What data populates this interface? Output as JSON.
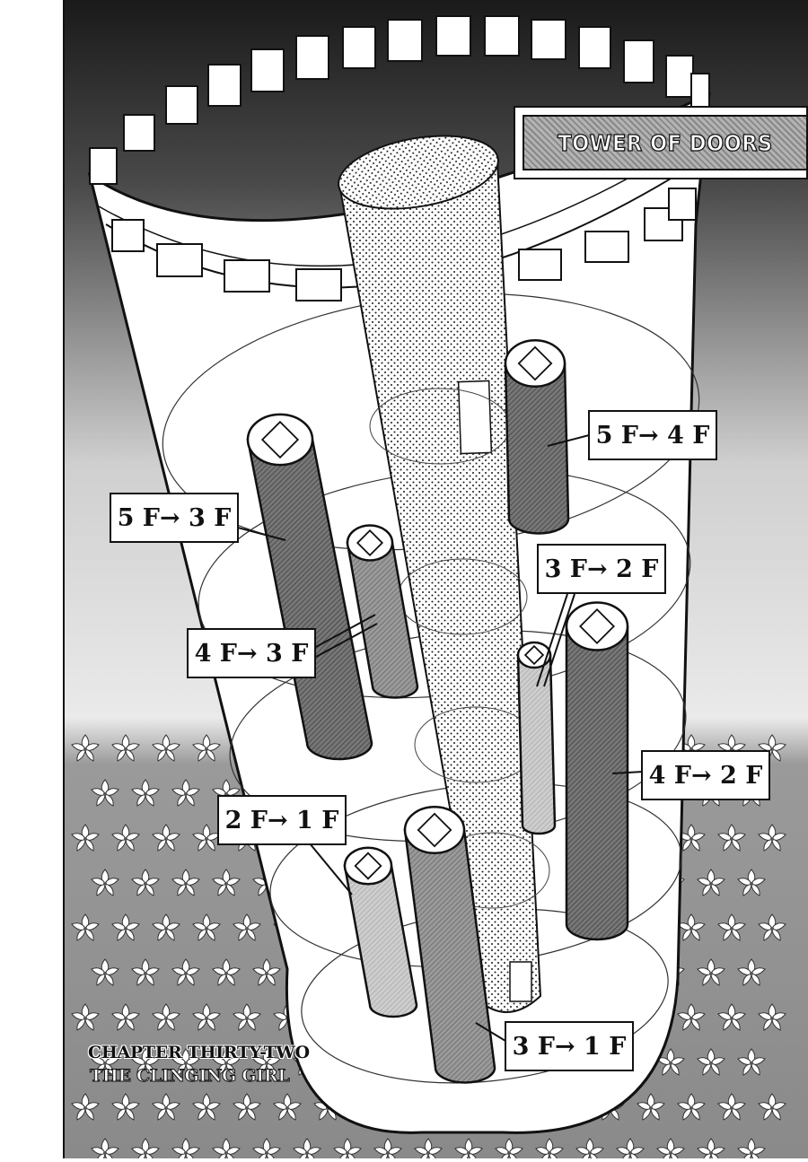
{
  "title": "TOWER OF DOORS",
  "chapter": {
    "number": "CHAPTER THIRTY-TWO",
    "title": "THE CLINGING GIRL"
  },
  "labels": [
    {
      "id": "5f-4f",
      "text": "5 F→ 4 F"
    },
    {
      "id": "5f-3f",
      "text": "5 F→ 3 F"
    },
    {
      "id": "3f-2f",
      "text": "3 F→ 2 F"
    },
    {
      "id": "4f-3f",
      "text": "4 F→ 3 F"
    },
    {
      "id": "4f-2f",
      "text": "4 F→ 2 F"
    },
    {
      "id": "2f-1f",
      "text": "2 F→ 1 F"
    },
    {
      "id": "3f-1f",
      "text": "3 F→ 1 F"
    }
  ],
  "colors": {
    "ink": "#111111",
    "dark_pipe": "#6a6a6a",
    "mid_pipe": "#909090",
    "light_pipe": "#c2c2c2",
    "background_gray": "#8e8e8e"
  }
}
